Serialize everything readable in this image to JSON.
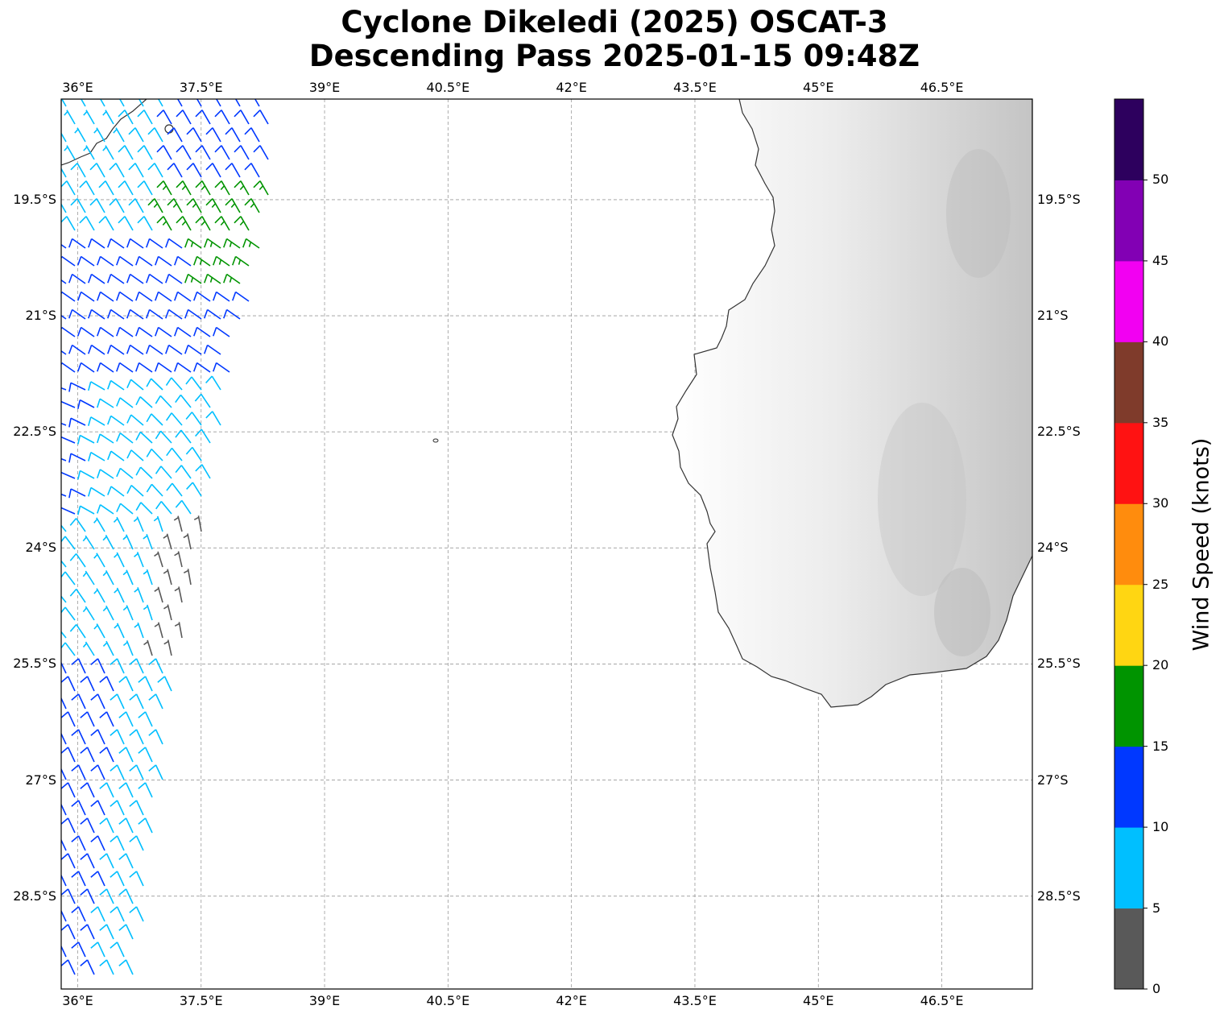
{
  "title": {
    "line1": "Cyclone Dikeledi (2025) OSCAT-3",
    "line2": "Descending Pass 2025-01-15 09:48Z"
  },
  "map": {
    "lon_range": [
      35.8,
      47.6
    ],
    "lat_range": [
      -29.7,
      -18.2
    ],
    "lon_ticks": [
      {
        "value": 36.0,
        "label": "36°E"
      },
      {
        "value": 37.5,
        "label": "37.5°E"
      },
      {
        "value": 39.0,
        "label": "39°E"
      },
      {
        "value": 40.5,
        "label": "40.5°E"
      },
      {
        "value": 42.0,
        "label": "42°E"
      },
      {
        "value": 43.5,
        "label": "43.5°E"
      },
      {
        "value": 45.0,
        "label": "45°E"
      },
      {
        "value": 46.5,
        "label": "46.5°E"
      }
    ],
    "lat_ticks": [
      {
        "value": -19.5,
        "label": "19.5°S"
      },
      {
        "value": -21.0,
        "label": "21°S"
      },
      {
        "value": -22.5,
        "label": "22.5°S"
      },
      {
        "value": -24.0,
        "label": "24°S"
      },
      {
        "value": -25.5,
        "label": "25.5°S"
      },
      {
        "value": -27.0,
        "label": "27°S"
      },
      {
        "value": -28.5,
        "label": "28.5°S"
      }
    ],
    "grid": true,
    "land": "Madagascar (southwest coast, grayscale terrain)",
    "barb_color_speed_bins": true
  },
  "colorbar": {
    "label": "Wind Speed (knots)",
    "bins": [
      {
        "from": 0,
        "to": 5,
        "color": "#595959"
      },
      {
        "from": 5,
        "to": 10,
        "color": "#00bfff"
      },
      {
        "from": 10,
        "to": 15,
        "color": "#0038ff"
      },
      {
        "from": 15,
        "to": 20,
        "color": "#009400"
      },
      {
        "from": 20,
        "to": 25,
        "color": "#ffd612"
      },
      {
        "from": 25,
        "to": 30,
        "color": "#ff8c0d"
      },
      {
        "from": 30,
        "to": 35,
        "color": "#ff1212"
      },
      {
        "from": 35,
        "to": 40,
        "color": "#7f3b2b"
      },
      {
        "from": 40,
        "to": 45,
        "color": "#f200f2"
      },
      {
        "from": 45,
        "to": 50,
        "color": "#8200b4"
      },
      {
        "from": 50,
        "to": 55,
        "color": "#2d005e"
      }
    ],
    "ticks": [
      "0",
      "5",
      "10",
      "15",
      "20",
      "25",
      "30",
      "35",
      "40",
      "45",
      "50"
    ]
  }
}
